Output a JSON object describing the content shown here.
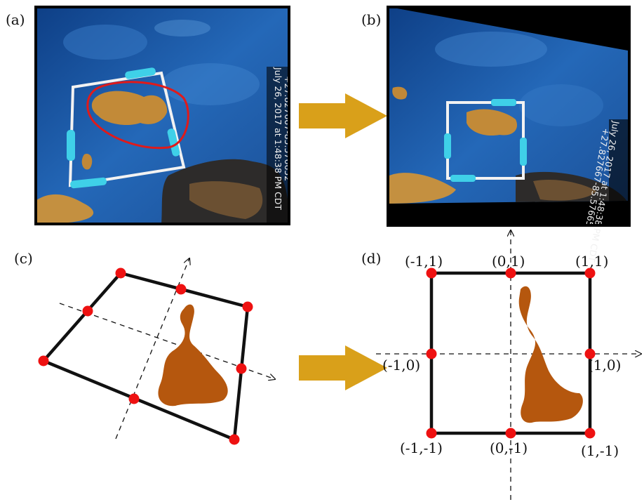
{
  "panels": {
    "a": "(a)",
    "b": "(b)",
    "c": "(c)",
    "d": "(d)"
  },
  "photo_stamp": {
    "line1": "July 26, 2017 at 1:48:38 PM CDT",
    "line2": "+27.827667-85.576652",
    "line1_b": "July 26, 2017 at 1:48:38 PM CDT",
    "line2_b": "+27.827667-85.57665"
  },
  "coords": {
    "tl": "(-1,1)",
    "tc": "(0,1)",
    "tr": "(1,1)",
    "ml": "(-1,0)",
    "mr": "(1,0)",
    "bl": "(-1,-1)",
    "bc": "(0,-1)",
    "br": "(1,-1)"
  },
  "colors": {
    "arrow": "#d9a01a",
    "point": "#ee1111",
    "seaweed": "#b5570e",
    "water": "#1f5fa8",
    "frame": "#1a1a1a"
  }
}
